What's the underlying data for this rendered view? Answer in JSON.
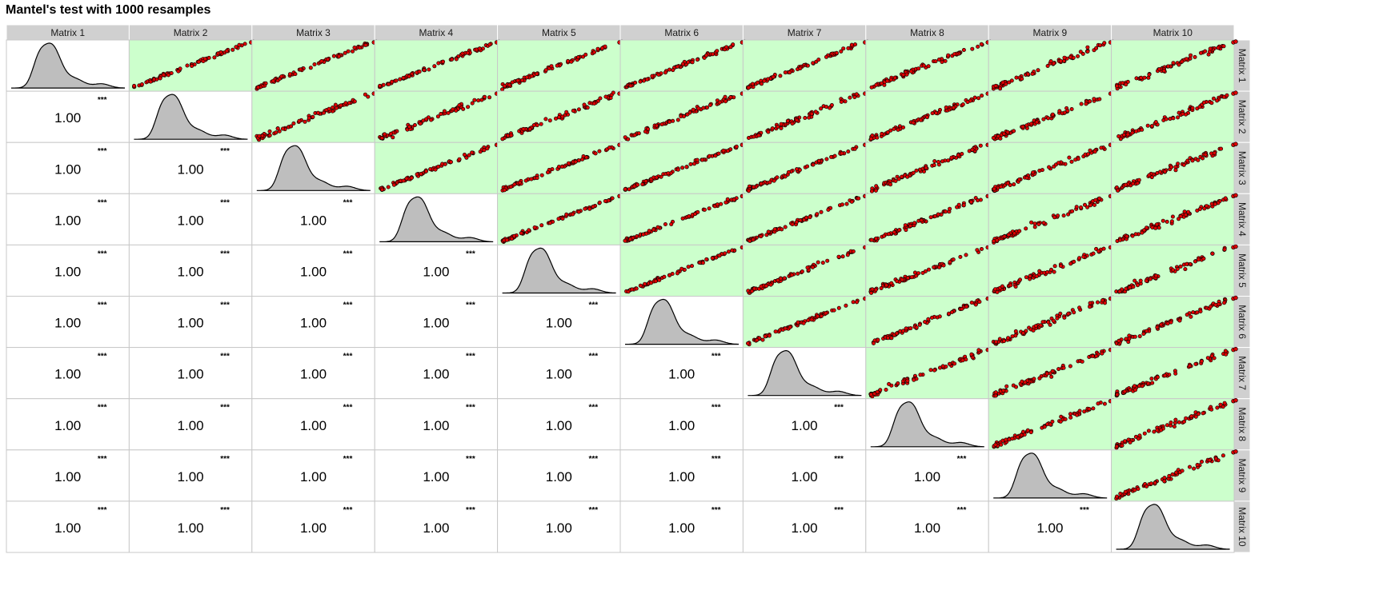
{
  "chart_data": {
    "type": "scatterplot-matrix",
    "title": "Mantel's test with 1000 resamples",
    "variables": [
      "Matrix 1",
      "Matrix 2",
      "Matrix 3",
      "Matrix 4",
      "Matrix 5",
      "Matrix 6",
      "Matrix 7",
      "Matrix 8",
      "Matrix 9",
      "Matrix 10"
    ],
    "lower_panels": {
      "kind": "correlation",
      "value_label": "1.00",
      "significance_label": "***",
      "correlations": [
        [
          null,
          null,
          null,
          null,
          null,
          null,
          null,
          null,
          null,
          null
        ],
        [
          1.0,
          null,
          null,
          null,
          null,
          null,
          null,
          null,
          null,
          null
        ],
        [
          1.0,
          1.0,
          null,
          null,
          null,
          null,
          null,
          null,
          null,
          null
        ],
        [
          1.0,
          1.0,
          1.0,
          null,
          null,
          null,
          null,
          null,
          null,
          null
        ],
        [
          1.0,
          1.0,
          1.0,
          1.0,
          null,
          null,
          null,
          null,
          null,
          null
        ],
        [
          1.0,
          1.0,
          1.0,
          1.0,
          1.0,
          null,
          null,
          null,
          null,
          null
        ],
        [
          1.0,
          1.0,
          1.0,
          1.0,
          1.0,
          1.0,
          null,
          null,
          null,
          null
        ],
        [
          1.0,
          1.0,
          1.0,
          1.0,
          1.0,
          1.0,
          1.0,
          null,
          null,
          null
        ],
        [
          1.0,
          1.0,
          1.0,
          1.0,
          1.0,
          1.0,
          1.0,
          1.0,
          null,
          null
        ],
        [
          1.0,
          1.0,
          1.0,
          1.0,
          1.0,
          1.0,
          1.0,
          1.0,
          1.0,
          null
        ]
      ]
    },
    "diagonal_panels": {
      "kind": "density",
      "fill": "#bebebe",
      "line": "#000000"
    },
    "upper_panels": {
      "kind": "scatter",
      "background": "#ccffcc",
      "point_fill": "#dd0000",
      "point_edge": "#000000",
      "relation": "near-perfect positive linear"
    },
    "strip_fill": "#d0d0d0",
    "grid_line_color": "#c8c8c8",
    "legend": "none"
  }
}
